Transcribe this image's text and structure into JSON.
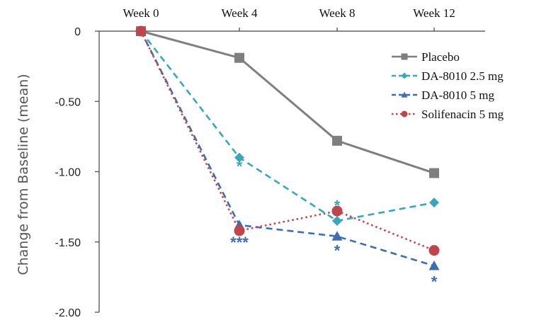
{
  "chart_data": {
    "type": "line",
    "title": "",
    "xlabel": "",
    "ylabel": "Change from Baseline (mean)",
    "categories": [
      "Week 0",
      "Week 4",
      "Week 8",
      "Week 12"
    ],
    "x_axis_position": "top",
    "yticks": [
      "0",
      "-0.50",
      "-1.00",
      "-1.50",
      "-2.00"
    ],
    "ytick_values": [
      0,
      -0.5,
      -1.0,
      -1.5,
      -2.0
    ],
    "ylim": [
      -2.0,
      0
    ],
    "grid": false,
    "legend_position": "right",
    "series": [
      {
        "name": "Placebo",
        "values": [
          0,
          -0.19,
          -0.78,
          -1.01
        ],
        "color": "#7f7f7f",
        "dash": "solid",
        "marker": "square"
      },
      {
        "name": "DA-8010 2.5 mg",
        "values": [
          0,
          -0.9,
          -1.35,
          -1.22
        ],
        "color": "#3aa6b9",
        "dash": "dashed",
        "marker": "diamond"
      },
      {
        "name": "DA-8010 5 mg",
        "values": [
          0,
          -1.38,
          -1.46,
          -1.67
        ],
        "color": "#3f6eb0",
        "dash": "dashed",
        "marker": "triangle"
      },
      {
        "name": "Solifenacin 5 mg",
        "values": [
          0,
          -1.42,
          -1.28,
          -1.56
        ],
        "color": "#c0454a",
        "dash": "dotted",
        "marker": "circle"
      }
    ],
    "annotations": [
      {
        "text": "*",
        "category": "Week 4",
        "y": -0.93,
        "color": "#3aa6b9"
      },
      {
        "text": "***",
        "category": "Week 4",
        "y": -1.47,
        "color": "#3f6eb0"
      },
      {
        "text": "*",
        "category": "Week 8",
        "y": -1.21,
        "color": "#3aa6b9"
      },
      {
        "text": "*",
        "category": "Week 8",
        "y": -1.53,
        "color": "#3f6eb0"
      },
      {
        "text": "*",
        "category": "Week 12",
        "y": -1.75,
        "color": "#3f6eb0"
      }
    ]
  }
}
